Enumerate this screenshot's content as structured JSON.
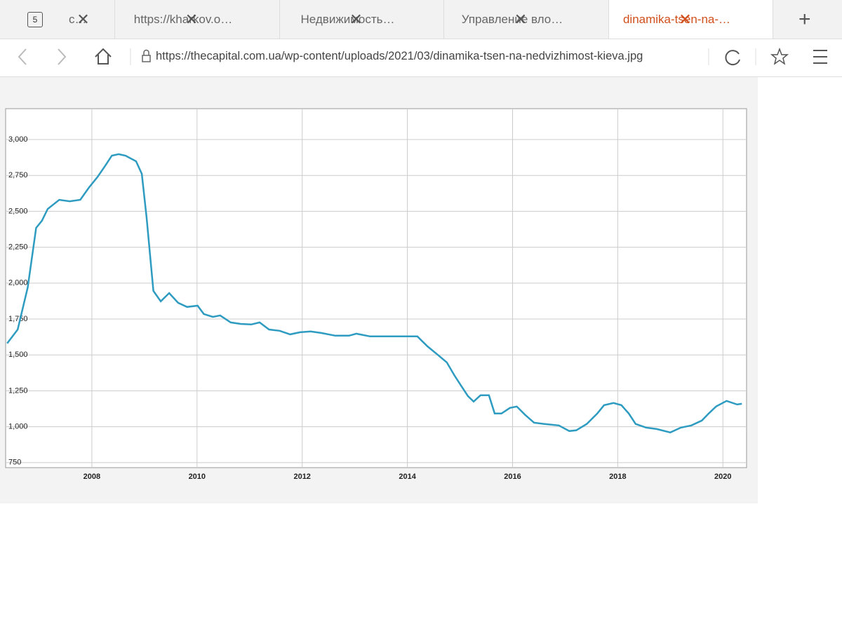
{
  "browser": {
    "tab_counter": "5",
    "tabs": [
      "с…",
      "https://kharkov.o…",
      "Недвижимость…",
      "Управление вло…",
      "dinamika-tsen-na-…"
    ],
    "url": "https://thecapital.com.ua/wp-content/uploads/2021/03/dinamika-tsen-na-nedvizhimost-kieva.jpg"
  },
  "chart_data": {
    "type": "line",
    "x": [
      2006.39,
      2006.59,
      2006.78,
      2006.94,
      2007.05,
      2007.16,
      2007.38,
      2007.58,
      2007.78,
      2007.94,
      2008.11,
      2008.25,
      2008.38,
      2008.51,
      2008.64,
      2008.84,
      2008.95,
      2009.04,
      2009.17,
      2009.31,
      2009.47,
      2009.64,
      2009.81,
      2010.01,
      2010.13,
      2010.3,
      2010.44,
      2010.64,
      2010.83,
      2011.03,
      2011.19,
      2011.37,
      2011.57,
      2011.77,
      2011.96,
      2012.16,
      2012.36,
      2012.63,
      2012.89,
      2013.03,
      2013.29,
      2013.69,
      2014.19,
      2014.38,
      2014.59,
      2014.75,
      2014.89,
      2015.02,
      2015.15,
      2015.26,
      2015.39,
      2015.55,
      2015.66,
      2015.79,
      2015.95,
      2016.08,
      2016.24,
      2016.41,
      2016.61,
      2016.88,
      2017.08,
      2017.21,
      2017.41,
      2017.61,
      2017.74,
      2017.92,
      2018.07,
      2018.21,
      2018.34,
      2018.54,
      2018.74,
      2019.0,
      2019.2,
      2019.4,
      2019.6,
      2019.73,
      2019.87,
      2020.07,
      2020.27,
      2020.36
    ],
    "series": [
      {
        "color": "#2e9bc0",
        "values": [
          1580,
          1677,
          1970,
          2385,
          2434,
          2517,
          2580,
          2570,
          2580,
          2663,
          2741,
          2815,
          2888,
          2898,
          2888,
          2849,
          2761,
          2458,
          1946,
          1873,
          1931,
          1863,
          1834,
          1843,
          1785,
          1765,
          1775,
          1726,
          1716,
          1712,
          1726,
          1677,
          1668,
          1643,
          1658,
          1663,
          1653,
          1634,
          1634,
          1648,
          1629,
          1629,
          1629,
          1560,
          1497,
          1448,
          1360,
          1287,
          1214,
          1175,
          1219,
          1219,
          1092,
          1092,
          1131,
          1141,
          1082,
          1028,
          1019,
          1009,
          970,
          975,
          1019,
          1092,
          1150,
          1165,
          1150,
          1092,
          1019,
          994,
          984,
          960,
          994,
          1009,
          1043,
          1092,
          1141,
          1180,
          1155,
          1160
        ]
      }
    ],
    "xlim": [
      2006.36,
      2020.45
    ],
    "xticks": [
      2008,
      2010,
      2012,
      2014,
      2016,
      2018,
      2020
    ],
    "ylim": [
      715,
      3215
    ],
    "yticks": [
      750,
      {
        "value": 1000,
        "label": "1,000"
      },
      {
        "value": 1250,
        "label": "1,250"
      },
      {
        "value": 1500,
        "label": "1,500"
      },
      {
        "value": 1750,
        "label": "1,750"
      },
      {
        "value": 2000,
        "label": "2,000"
      },
      {
        "value": 2250,
        "label": "2,250"
      },
      {
        "value": 2500,
        "label": "2,500"
      },
      {
        "value": 2750,
        "label": "2,750"
      },
      {
        "value": 3000,
        "label": "3,000"
      }
    ],
    "grid": true
  }
}
